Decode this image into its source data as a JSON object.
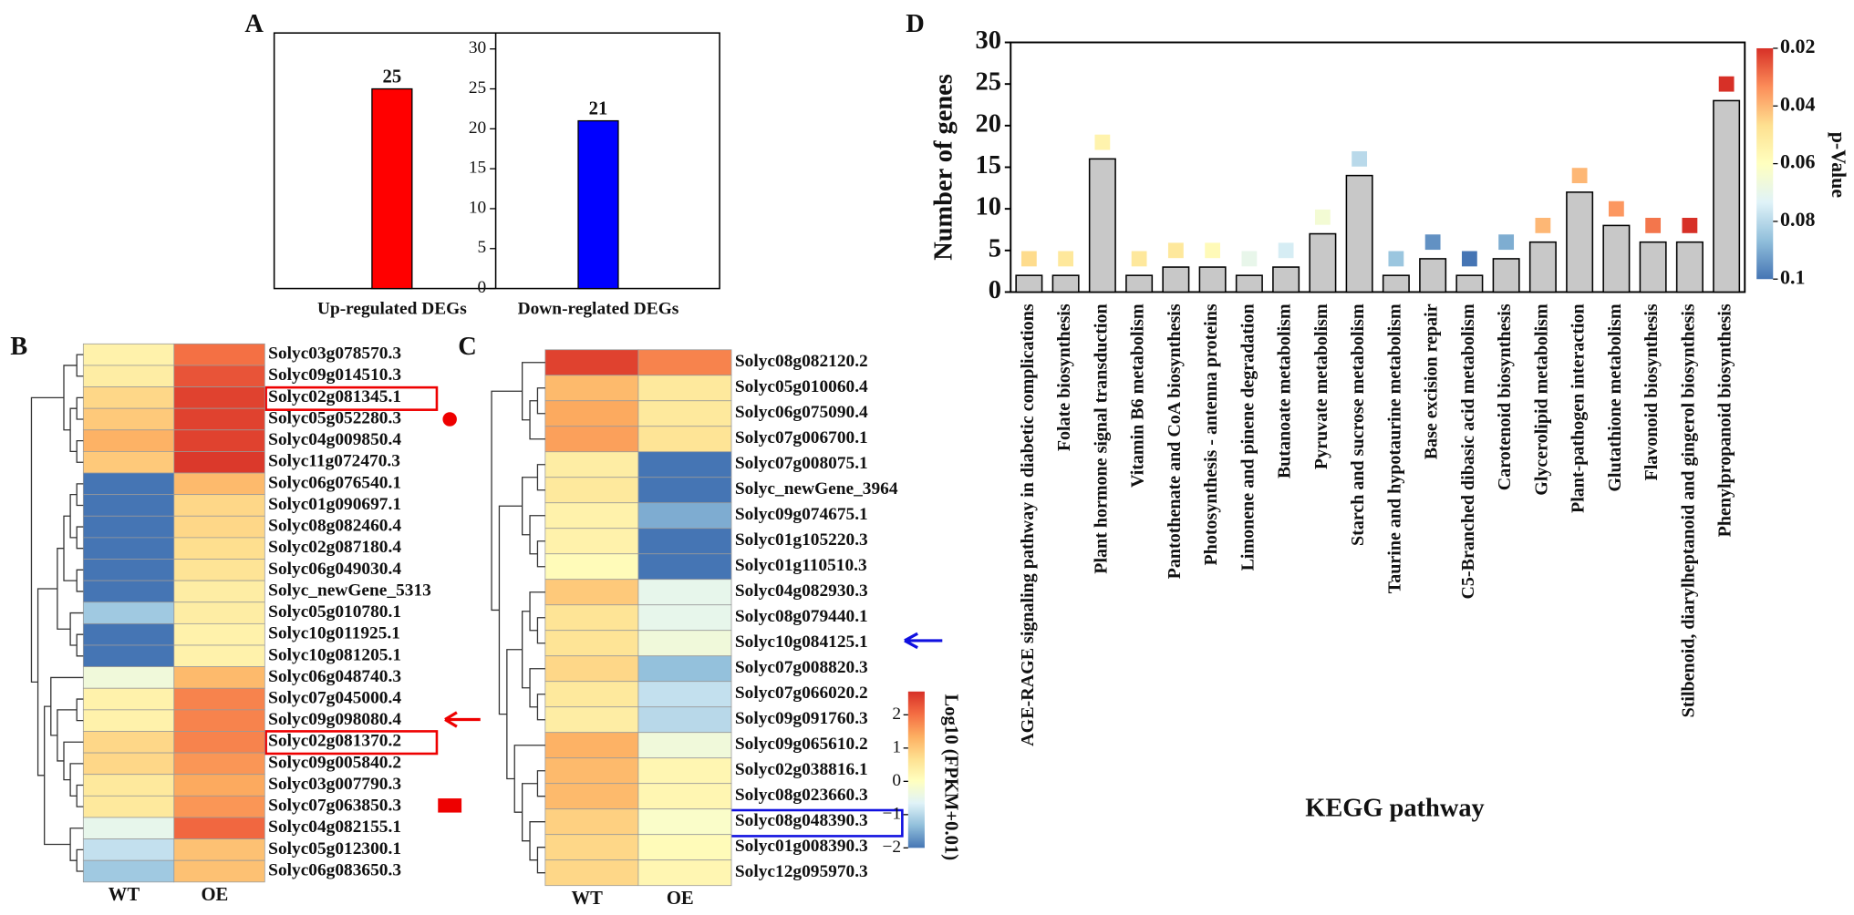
{
  "chart_data": [
    {
      "type": "bar",
      "panel": "A",
      "categories": [
        "Up-regulated DEGs",
        "Down-reglated DEGs"
      ],
      "values": [
        25,
        21
      ],
      "colors": [
        "#ff0000",
        "#0000ff"
      ],
      "ylim": [
        0,
        32
      ],
      "yticks": [
        0,
        5,
        10,
        15,
        20,
        25,
        30
      ]
    },
    {
      "type": "heatmap",
      "panel": "B",
      "columns": [
        "WT",
        "OE"
      ],
      "rows": [
        "Solyc03g078570.3",
        "Solyc09g014510.3",
        "Solyc02g081345.1",
        "Solyc05g052280.3",
        "Solyc04g009850.4",
        "Solyc11g072470.3",
        "Solyc06g076540.1",
        "Solyc01g090697.1",
        "Solyc08g082460.4",
        "Solyc02g087180.4",
        "Solyc06g049030.4",
        "Solyc_newGene_5313",
        "Solyc05g010780.1",
        "Solyc10g011925.1",
        "Solyc10g081205.1",
        "Solyc06g048740.3",
        "Solyc07g045000.4",
        "Solyc09g098080.4",
        "Solyc02g081370.2",
        "Solyc09g005840.2",
        "Solyc03g007790.3",
        "Solyc07g063850.3",
        "Solyc04g082155.1",
        "Solyc05g012300.1",
        "Solyc06g083650.3"
      ],
      "values": [
        [
          0.3,
          2.0
        ],
        [
          0.4,
          2.3
        ],
        [
          0.8,
          2.5
        ],
        [
          1.0,
          2.5
        ],
        [
          1.3,
          2.5
        ],
        [
          1.0,
          2.6
        ],
        [
          -2,
          1.2
        ],
        [
          -2,
          0.8
        ],
        [
          -2,
          0.8
        ],
        [
          -2,
          0.7
        ],
        [
          -2,
          0.6
        ],
        [
          -2,
          0.4
        ],
        [
          -1.2,
          0.4
        ],
        [
          -2,
          0.3
        ],
        [
          -2,
          0.3
        ],
        [
          -0.3,
          1.2
        ],
        [
          0.3,
          1.8
        ],
        [
          0.3,
          1.8
        ],
        [
          0.8,
          1.8
        ],
        [
          0.8,
          1.6
        ],
        [
          0.5,
          1.4
        ],
        [
          0.5,
          1.6
        ],
        [
          -0.5,
          2.1
        ],
        [
          -0.9,
          1.1
        ],
        [
          -1.2,
          1.1
        ]
      ],
      "clim": [
        -2,
        2.7
      ],
      "colormap": [
        "#4575b4",
        "#91bfdb",
        "#e0f3f8",
        "#ffffbf",
        "#fee090",
        "#fdae61",
        "#f46d43",
        "#d73027"
      ]
    },
    {
      "type": "heatmap",
      "panel": "C",
      "columns": [
        "WT",
        "OE"
      ],
      "rows": [
        "Solyc08g082120.2",
        "Solyc05g010060.4",
        "Solyc06g075090.4",
        "Solyc07g006700.1",
        "Solyc07g008075.1",
        "Solyc_newGene_3964",
        "Solyc09g074675.1",
        "Solyc01g105220.3",
        "Solyc01g110510.3",
        "Solyc04g082930.3",
        "Solyc08g079440.1",
        "Solyc10g084125.1",
        "Solyc07g008820.3",
        "Solyc07g066020.2",
        "Solyc09g091760.3",
        "Solyc09g065610.2",
        "Solyc02g038816.1",
        "Solyc08g023660.3",
        "Solyc08g048390.3",
        "Solyc01g008390.3",
        "Solyc12g095970.3"
      ],
      "values": [
        [
          2.5,
          1.8
        ],
        [
          1.2,
          0.5
        ],
        [
          1.4,
          0.5
        ],
        [
          1.5,
          0.6
        ],
        [
          0.4,
          -2
        ],
        [
          0.5,
          -2
        ],
        [
          0.3,
          -1.5
        ],
        [
          0.3,
          -2
        ],
        [
          0.1,
          -2
        ],
        [
          1.0,
          -0.5
        ],
        [
          0.6,
          -0.5
        ],
        [
          0.6,
          -0.3
        ],
        [
          0.8,
          -1.3
        ],
        [
          0.5,
          -0.9
        ],
        [
          0.4,
          -1.0
        ],
        [
          1.3,
          -0.3
        ],
        [
          1.2,
          0.2
        ],
        [
          1.2,
          0.2
        ],
        [
          0.9,
          -0.1
        ],
        [
          0.8,
          0.1
        ],
        [
          0.8,
          0.2
        ]
      ],
      "clim": [
        -2,
        2.7
      ],
      "colormap": [
        "#4575b4",
        "#91bfdb",
        "#e0f3f8",
        "#ffffbf",
        "#fee090",
        "#fdae61",
        "#f46d43",
        "#d73027"
      ],
      "colorbar_label": "Log10 (FPKM+0.01)",
      "cticks": [
        2,
        1,
        0,
        {
          "value": -1,
          "label": "−1"
        },
        {
          "value": -2,
          "label": "−2"
        }
      ]
    },
    {
      "type": "bar",
      "panel": "D",
      "categories": [
        "AGE-RAGE signaling pathway in diabetic complications",
        "Folate biosynthesis",
        "Plant hormone signal transduction",
        "Vitamin B6 metabolism",
        "Pantothenate and CoA biosynthesis",
        "Photosynthesis - antenna proteins",
        "Limonene and pinene degradation",
        "Butanoate metabolism",
        "Pyruvate metabolism",
        "Starch and sucrose metabolism",
        "Taurine and hypotaurine metabolism",
        "Base excision repair",
        "C5-Branched dibasic acid metabolism",
        "Carotenoid biosynthesis",
        "Glycerolipid metabolism",
        "Plant-pathogen interaction",
        "Glutathione metabolism",
        "Flavonoid biosynthesis",
        "Stilbenoid, diarylheptanoid and gingerol biosynthesis",
        "Phenylpropanoid biosynthesis"
      ],
      "values": [
        2,
        2,
        16,
        2,
        3,
        3,
        2,
        3,
        7,
        14,
        2,
        4,
        2,
        4,
        6,
        12,
        8,
        6,
        6,
        23
      ],
      "p_values": [
        0.046,
        0.05,
        0.055,
        0.05,
        0.05,
        0.058,
        0.07,
        0.075,
        0.065,
        0.08,
        0.085,
        0.095,
        0.1,
        0.09,
        0.04,
        0.04,
        0.035,
        0.03,
        0.02,
        0.02
      ],
      "color": "#c8c8c8",
      "xlabel": "KEGG pathway",
      "ylabel": "Number of genes",
      "ylim": [
        0,
        30
      ],
      "yticks": [
        0,
        5,
        10,
        15,
        20,
        25,
        30
      ],
      "colorbar_label": "p-Value",
      "plim": [
        0.02,
        0.1
      ],
      "pticks": [
        0.02,
        0.04,
        0.06,
        0.08,
        0.1
      ],
      "colormap": [
        "#d73027",
        "#fc8d59",
        "#fee090",
        "#ffffbf",
        "#e0f3f8",
        "#91bfdb",
        "#4575b4"
      ]
    }
  ]
}
